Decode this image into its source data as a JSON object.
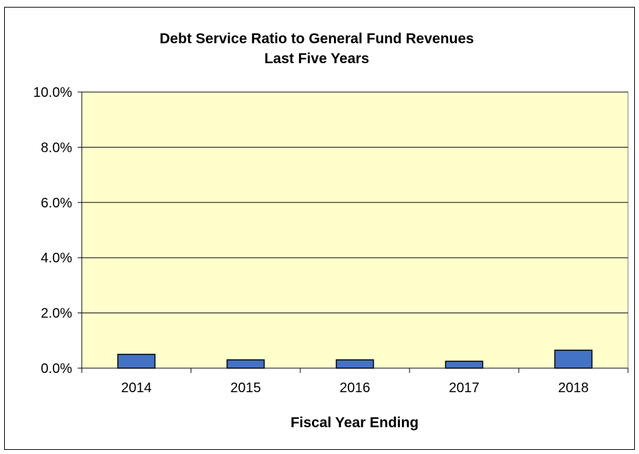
{
  "chart_data": {
    "type": "bar",
    "title": "Debt Service Ratio to General Fund Revenues",
    "subtitle": "Last Five Years",
    "xlabel": "Fiscal Year Ending",
    "ylabel": "",
    "categories": [
      "2014",
      "2015",
      "2016",
      "2017",
      "2018"
    ],
    "values": [
      0.5,
      0.3,
      0.3,
      0.25,
      0.65
    ],
    "ylim": [
      0,
      10
    ],
    "yticks": [
      0,
      2,
      4,
      6,
      8,
      10
    ],
    "ytick_labels": [
      "0.0%",
      "2.0%",
      "4.0%",
      "6.0%",
      "8.0%",
      "10.0%"
    ],
    "grid": true,
    "legend": "none",
    "colors": {
      "bar": "#4472C4",
      "bar_border": "#000000",
      "plot_background": "#FFFFCC",
      "gridline": "#000000"
    }
  }
}
